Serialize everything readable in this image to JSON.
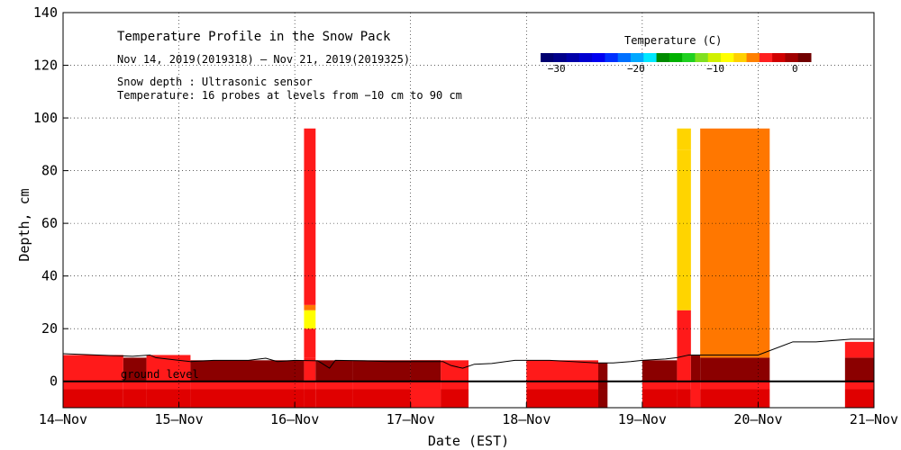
{
  "chart_data": {
    "type": "heatmap",
    "title": "Temperature Profile in the Snow Pack",
    "date_range": "Nov 14, 2019(2019318) — Nov 21, 2019(2019325)",
    "note_snow": "Snow depth : Ultrasonic sensor",
    "note_temp": "Temperature: 16 probes at levels from −10 cm to 90 cm",
    "xlabel": "Date (EST)",
    "ylabel": "Depth, cm",
    "x_ticks": [
      "14–Nov",
      "15–Nov",
      "16–Nov",
      "17–Nov",
      "18–Nov",
      "19–Nov",
      "20–Nov",
      "21–Nov"
    ],
    "xlim": [
      "2019-11-14",
      "2019-11-21"
    ],
    "ylim": [
      -10,
      140
    ],
    "y_ticks": [
      0,
      20,
      40,
      60,
      80,
      100,
      120,
      140
    ],
    "grid": "dotted",
    "ground_label": "ground level",
    "colorbar": {
      "title": "Temperature (C)",
      "range": [
        -32,
        2
      ],
      "tick_values": [
        -30,
        -20,
        -10,
        0
      ],
      "tick_labels": [
        "−30",
        "−20",
        "−10",
        "0"
      ],
      "colors": [
        "#000070",
        "#00008a",
        "#0000a8",
        "#0000d0",
        "#0000f0",
        "#0030ff",
        "#0070ff",
        "#00a8ff",
        "#00e8ff",
        "#008a00",
        "#00b000",
        "#20d020",
        "#80e020",
        "#d0f000",
        "#ffff00",
        "#ffd000",
        "#ff8000",
        "#ff2020",
        "#d00000",
        "#a00000",
        "#700000"
      ]
    },
    "palette": {
      "dark_red": "#8b0000",
      "red": "#ff1a1a",
      "red2": "#e00000",
      "orange": "#ff7700",
      "yellow": "#ffd400",
      "yellow2": "#ffff00",
      "green": "#66cc00"
    },
    "snow_depth": {
      "series": [
        [
          0,
          10.5
        ],
        [
          0.3,
          10
        ],
        [
          0.6,
          9.5
        ],
        [
          0.75,
          10
        ],
        [
          0.8,
          9
        ],
        [
          1.0,
          8
        ],
        [
          1.1,
          7.5
        ],
        [
          1.3,
          8
        ],
        [
          1.6,
          8
        ],
        [
          1.75,
          8.8
        ],
        [
          1.85,
          7.5
        ],
        [
          2.0,
          8
        ],
        [
          2.2,
          7.8
        ],
        [
          2.3,
          5
        ],
        [
          2.35,
          8
        ],
        [
          2.6,
          7.8
        ],
        [
          2.8,
          7.5
        ],
        [
          3.0,
          7.5
        ],
        [
          3.2,
          7.5
        ],
        [
          3.28,
          7.5
        ],
        [
          3.35,
          6
        ],
        [
          3.45,
          5
        ],
        [
          3.55,
          6.5
        ],
        [
          3.7,
          6.8
        ],
        [
          3.9,
          8
        ],
        [
          4.2,
          8
        ],
        [
          4.4,
          7.5
        ],
        [
          4.6,
          7
        ],
        [
          4.75,
          7
        ],
        [
          4.9,
          7.5
        ],
        [
          5.0,
          8
        ],
        [
          5.2,
          8.5
        ],
        [
          5.3,
          9
        ],
        [
          5.4,
          10
        ],
        [
          5.6,
          10
        ],
        [
          5.8,
          10
        ],
        [
          6.0,
          10
        ],
        [
          6.3,
          15
        ],
        [
          6.5,
          15
        ],
        [
          6.8,
          16
        ],
        [
          7.0,
          16
        ]
      ]
    },
    "temperature_segments": [
      {
        "x0": 0,
        "x1": 0.52,
        "bands": [
          [
            -10,
            -3,
            "red2"
          ],
          [
            -3,
            0,
            "red"
          ],
          [
            0,
            10,
            "red"
          ]
        ]
      },
      {
        "x0": 0.52,
        "x1": 0.72,
        "bands": [
          [
            -10,
            -3,
            "red2"
          ],
          [
            -3,
            0,
            "red"
          ],
          [
            0,
            9,
            "dark_red"
          ]
        ]
      },
      {
        "x0": 0.72,
        "x1": 1.1,
        "bands": [
          [
            -10,
            -3,
            "red2"
          ],
          [
            -3,
            0,
            "red"
          ],
          [
            0,
            10,
            "red"
          ]
        ]
      },
      {
        "x0": 1.1,
        "x1": 2.08,
        "bands": [
          [
            -10,
            -3,
            "red2"
          ],
          [
            -3,
            0,
            "red"
          ],
          [
            0,
            8,
            "dark_red"
          ]
        ]
      },
      {
        "x0": 2.08,
        "x1": 2.18,
        "bands": [
          [
            -10,
            -3,
            "red2"
          ],
          [
            -3,
            9,
            "red"
          ],
          [
            9,
            20,
            "red"
          ],
          [
            20,
            27,
            "yellow2"
          ],
          [
            27,
            29,
            "orange"
          ],
          [
            29,
            96,
            "red"
          ]
        ]
      },
      {
        "x0": 2.18,
        "x1": 2.5,
        "bands": [
          [
            -10,
            -3,
            "red2"
          ],
          [
            -3,
            0,
            "red"
          ],
          [
            0,
            8,
            "dark_red"
          ]
        ]
      },
      {
        "x0": 2.5,
        "x1": 3.0,
        "bands": [
          [
            -10,
            -3,
            "red2"
          ],
          [
            -3,
            0,
            "red"
          ],
          [
            0,
            8,
            "dark_red"
          ]
        ]
      },
      {
        "x0": 3.0,
        "x1": 3.26,
        "bands": [
          [
            -10,
            -3,
            "red2"
          ],
          [
            -3,
            0,
            "red"
          ],
          [
            0,
            8,
            "dark_red"
          ]
        ]
      },
      {
        "x0": 3.0,
        "x1": 3.26,
        "bands": [
          [
            -10,
            0,
            "red"
          ],
          [
            0,
            8,
            "dark_red"
          ]
        ]
      },
      {
        "x0": 3.26,
        "x1": 3.5,
        "bands": [
          [
            -10,
            -3,
            "red2"
          ],
          [
            -3,
            0,
            "red"
          ],
          [
            0,
            8,
            "red"
          ]
        ]
      },
      {
        "x0": 4.0,
        "x1": 4.62,
        "bands": [
          [
            -10,
            -3,
            "red2"
          ],
          [
            -3,
            0,
            "red"
          ],
          [
            0,
            8,
            "red"
          ]
        ]
      },
      {
        "x0": 4.62,
        "x1": 4.7,
        "bands": [
          [
            -10,
            -3,
            "dark_red"
          ],
          [
            -3,
            7,
            "dark_red"
          ]
        ]
      },
      {
        "x0": 5.0,
        "x1": 5.3,
        "bands": [
          [
            -10,
            -3,
            "red2"
          ],
          [
            -3,
            0,
            "red"
          ],
          [
            0,
            8,
            "dark_red"
          ]
        ]
      },
      {
        "x0": 5.3,
        "x1": 5.42,
        "bands": [
          [
            -10,
            -3,
            "red2"
          ],
          [
            -3,
            0,
            "red"
          ],
          [
            0,
            10,
            "red"
          ],
          [
            10,
            27,
            "red"
          ],
          [
            27,
            88,
            "yellow"
          ],
          [
            88,
            96,
            "yellow"
          ]
        ]
      },
      {
        "x0": 5.42,
        "x1": 5.5,
        "bands": [
          [
            -10,
            0,
            "red"
          ],
          [
            0,
            10,
            "dark_red"
          ]
        ]
      },
      {
        "x0": 5.5,
        "x1": 6.1,
        "bands": [
          [
            -10,
            -3,
            "red2"
          ],
          [
            -3,
            0,
            "red"
          ],
          [
            0,
            9,
            "dark_red"
          ],
          [
            9,
            96,
            "orange"
          ]
        ]
      },
      {
        "x0": 6.75,
        "x1": 7.0,
        "bands": [
          [
            -10,
            -3,
            "red2"
          ],
          [
            -3,
            0,
            "red"
          ],
          [
            0,
            9,
            "dark_red"
          ],
          [
            9,
            15,
            "red"
          ]
        ]
      }
    ]
  }
}
